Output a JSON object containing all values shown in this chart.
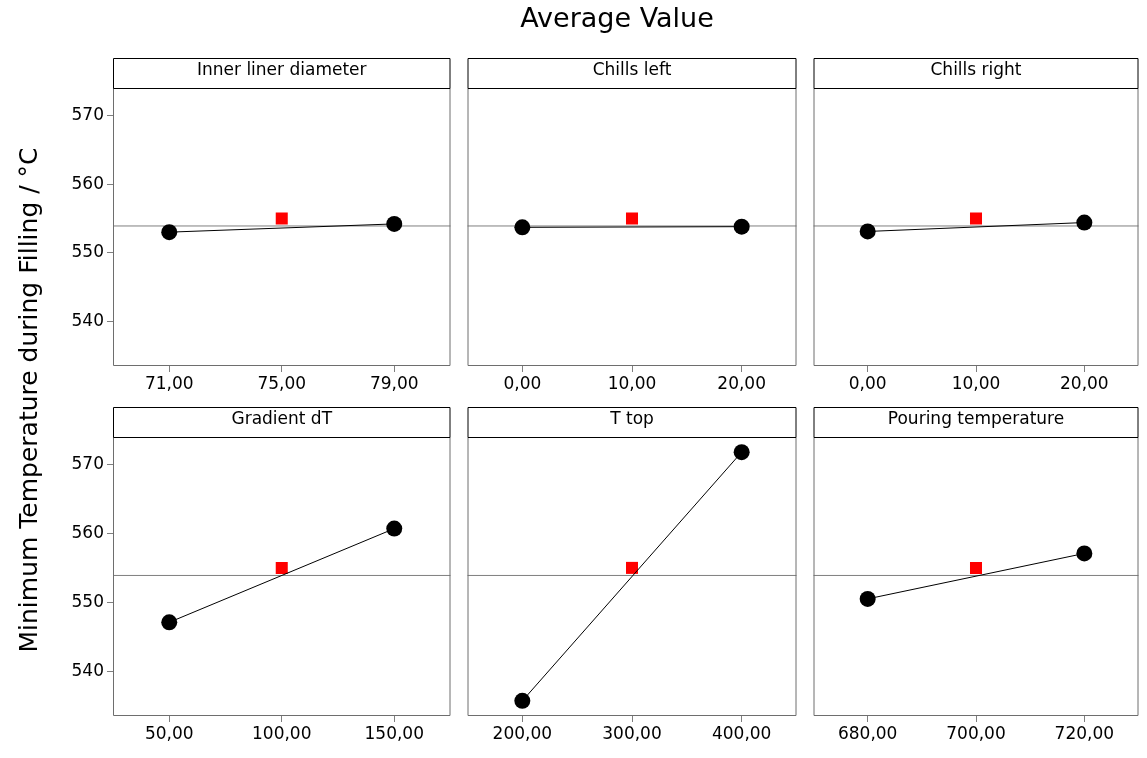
{
  "chart_data": [
    {
      "type": "line",
      "xlabel": "Inner liner diameter",
      "xlim": [
        69,
        81
      ],
      "xticks": [
        {
          "value": 71,
          "label": "71,00"
        },
        {
          "value": 75,
          "label": "75,00"
        },
        {
          "value": 79,
          "label": "79,00"
        }
      ],
      "ylim": [
        533.5,
        574
      ],
      "yticks": [
        540,
        550,
        560,
        570
      ],
      "grid": false,
      "legend": false,
      "ref_lines": [
        {
          "axis": "y",
          "value": 553.9,
          "color": "#7f7f7f"
        }
      ],
      "series": [
        {
          "type": "line",
          "color": "#000000",
          "marker": "circle",
          "x": [
            71,
            79
          ],
          "values": [
            553.0,
            554.2
          ]
        },
        {
          "type": "scatter",
          "color": "#ff0000",
          "marker": "square",
          "x": [
            75
          ],
          "values": [
            555.0
          ]
        }
      ]
    },
    {
      "type": "line",
      "xlabel": "Chills left",
      "xlim": [
        -5,
        25
      ],
      "xticks": [
        {
          "value": 0,
          "label": "0,00"
        },
        {
          "value": 10,
          "label": "10,00"
        },
        {
          "value": 20,
          "label": "20,00"
        }
      ],
      "ylim": [
        533.5,
        574
      ],
      "yticks": [
        540,
        550,
        560,
        570
      ],
      "tick_labels": "x",
      "grid": false,
      "legend": false,
      "ref_lines": [
        {
          "axis": "y",
          "value": 553.9,
          "color": "#7f7f7f"
        }
      ],
      "series": [
        {
          "type": "line",
          "color": "#000000",
          "marker": "circle",
          "x": [
            0,
            20
          ],
          "values": [
            553.7,
            553.8
          ]
        },
        {
          "type": "scatter",
          "color": "#ff0000",
          "marker": "square",
          "x": [
            10
          ],
          "values": [
            555.0
          ]
        }
      ]
    },
    {
      "type": "line",
      "xlabel": "Chills right",
      "xlim": [
        -5,
        25
      ],
      "xticks": [
        {
          "value": 0,
          "label": "0,00"
        },
        {
          "value": 10,
          "label": "10,00"
        },
        {
          "value": 20,
          "label": "20,00"
        }
      ],
      "ylim": [
        533.5,
        574
      ],
      "yticks": [
        540,
        550,
        560,
        570
      ],
      "tick_labels": "x",
      "grid": false,
      "legend": false,
      "ref_lines": [
        {
          "axis": "y",
          "value": 553.9,
          "color": "#7f7f7f"
        }
      ],
      "series": [
        {
          "type": "line",
          "color": "#000000",
          "marker": "circle",
          "x": [
            0,
            20
          ],
          "values": [
            553.1,
            554.4
          ]
        },
        {
          "type": "scatter",
          "color": "#ff0000",
          "marker": "square",
          "x": [
            10
          ],
          "values": [
            555.0
          ]
        }
      ]
    },
    {
      "type": "line",
      "xlabel": "Gradient dT",
      "xlim": [
        25,
        175
      ],
      "xticks": [
        {
          "value": 50,
          "label": "50,00"
        },
        {
          "value": 100,
          "label": "100,00"
        },
        {
          "value": 150,
          "label": "150,00"
        }
      ],
      "ylim": [
        533.5,
        574
      ],
      "yticks": [
        540,
        550,
        560,
        570
      ],
      "grid": false,
      "legend": false,
      "ref_lines": [
        {
          "axis": "y",
          "value": 553.9,
          "color": "#7f7f7f"
        }
      ],
      "series": [
        {
          "type": "line",
          "color": "#000000",
          "marker": "circle",
          "x": [
            50,
            150
          ],
          "values": [
            547.1,
            560.7
          ]
        },
        {
          "type": "scatter",
          "color": "#ff0000",
          "marker": "square",
          "x": [
            100
          ],
          "values": [
            555.0
          ]
        }
      ]
    },
    {
      "type": "line",
      "xlabel": "T top",
      "xlim": [
        150,
        450
      ],
      "xticks": [
        {
          "value": 200,
          "label": "200,00"
        },
        {
          "value": 300,
          "label": "300,00"
        },
        {
          "value": 400,
          "label": "400,00"
        }
      ],
      "ylim": [
        533.5,
        574
      ],
      "yticks": [
        540,
        550,
        560,
        570
      ],
      "tick_labels": "x",
      "grid": false,
      "legend": false,
      "ref_lines": [
        {
          "axis": "y",
          "value": 553.9,
          "color": "#7f7f7f"
        }
      ],
      "series": [
        {
          "type": "line",
          "color": "#000000",
          "marker": "circle",
          "x": [
            200,
            400
          ],
          "values": [
            535.7,
            571.8
          ]
        },
        {
          "type": "scatter",
          "color": "#ff0000",
          "marker": "square",
          "x": [
            300
          ],
          "values": [
            555.0
          ]
        }
      ]
    },
    {
      "type": "line",
      "xlabel": "Pouring temperature",
      "xlim": [
        670,
        730
      ],
      "xticks": [
        {
          "value": 680,
          "label": "680,00"
        },
        {
          "value": 700,
          "label": "700,00"
        },
        {
          "value": 720,
          "label": "720,00"
        }
      ],
      "ylim": [
        533.5,
        574
      ],
      "yticks": [
        540,
        550,
        560,
        570
      ],
      "tick_labels": "x",
      "grid": false,
      "legend": false,
      "ref_lines": [
        {
          "axis": "y",
          "value": 553.9,
          "color": "#7f7f7f"
        }
      ],
      "series": [
        {
          "type": "line",
          "color": "#000000",
          "marker": "circle",
          "x": [
            680,
            720
          ],
          "values": [
            550.5,
            557.1
          ]
        },
        {
          "type": "scatter",
          "color": "#ff0000",
          "marker": "square",
          "x": [
            700
          ],
          "values": [
            555.0
          ]
        }
      ]
    },
    {
      "type": "other",
      "title": "Average Value",
      "ylabel": "Minimum Temperature during Filling / °C"
    }
  ]
}
